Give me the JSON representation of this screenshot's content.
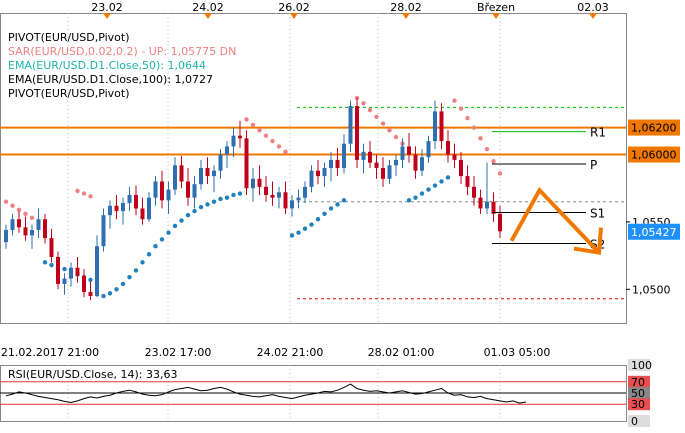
{
  "chart_data": [
    {
      "type": "candlestick",
      "symbol": "EUR/USD",
      "top_date_labels": [
        "23.02",
        "24.02",
        "26.02",
        "28.02",
        "Březen",
        "02.03"
      ],
      "bottom_time_labels": [
        "21.02.2017 21:00",
        "23.02 17:00",
        "24.02 21:00",
        "28.02 01:00",
        "01.03 05:00"
      ],
      "y_ticks": [
        "1,0550",
        "1,0500"
      ],
      "ylim": [
        1.0475,
        1.0705
      ],
      "price_tags": [
        {
          "label": "1,06200",
          "value": 1.062,
          "color": "#f07800"
        },
        {
          "label": "1,06000",
          "value": 1.06,
          "color": "#f07800"
        },
        {
          "label": "1,05427",
          "value": 1.05427,
          "color": "#1e90ff"
        }
      ],
      "legend": [
        {
          "text": "PIVOT(EUR/USD,Pivot)",
          "color": "#000000"
        },
        {
          "text": "SAR(EUR/USD,0.02,0.2) -  UP: 1,05775   DN",
          "color": "#f08080"
        },
        {
          "text": "EMA(EUR/USD.D1.Close,50): 1,0644",
          "color": "#20b2aa"
        },
        {
          "text": "EMA(EUR/USD.D1.Close,100): 1,0727",
          "color": "#000000"
        },
        {
          "text": "PIVOT(EUR/USD,Pivot)",
          "color": "#000000"
        }
      ],
      "levels": [
        {
          "name": "R1",
          "value": 1.0617
        },
        {
          "name": "P",
          "value": 1.0593
        },
        {
          "name": "S1",
          "value": 1.0557
        },
        {
          "name": "S2",
          "value": 1.0534
        }
      ],
      "horizontal_lines": [
        {
          "value": 1.062,
          "color": "#f07800",
          "style": "solid"
        },
        {
          "value": 1.06,
          "color": "#f07800",
          "style": "solid"
        },
        {
          "value": 1.0635,
          "color": "#00bb00",
          "style": "dashed"
        },
        {
          "value": 1.0565,
          "color": "#888888",
          "style": "dashed"
        },
        {
          "value": 1.0493,
          "color": "#dd0000",
          "style": "dashed"
        }
      ],
      "candles": [
        [
          1.0535,
          1.0548,
          1.053,
          1.0544
        ],
        [
          1.0544,
          1.0556,
          1.054,
          1.0552
        ],
        [
          1.0552,
          1.0558,
          1.0542,
          1.0546
        ],
        [
          1.0546,
          1.0554,
          1.0536,
          1.054
        ],
        [
          1.054,
          1.0548,
          1.053,
          1.0544
        ],
        [
          1.0544,
          1.056,
          1.0538,
          1.0552
        ],
        [
          1.0552,
          1.0556,
          1.0534,
          1.0538
        ],
        [
          1.0538,
          1.0545,
          1.052,
          1.0524
        ],
        [
          1.0524,
          1.0528,
          1.05,
          1.0504
        ],
        [
          1.0504,
          1.0512,
          1.0496,
          1.0508
        ],
        [
          1.0508,
          1.052,
          1.0502,
          1.0516
        ],
        [
          1.0516,
          1.0524,
          1.0505,
          1.051
        ],
        [
          1.051,
          1.0515,
          1.0494,
          1.0498
        ],
        [
          1.0498,
          1.0506,
          1.0492,
          1.0495
        ],
        [
          1.0495,
          1.054,
          1.0494,
          1.0532
        ],
        [
          1.0532,
          1.056,
          1.0528,
          1.0555
        ],
        [
          1.0555,
          1.0566,
          1.0545,
          1.0562
        ],
        [
          1.0562,
          1.057,
          1.0552,
          1.0558
        ],
        [
          1.0558,
          1.0568,
          1.0548,
          1.0564
        ],
        [
          1.0564,
          1.0576,
          1.0558,
          1.057
        ],
        [
          1.057,
          1.0577,
          1.0555,
          1.056
        ],
        [
          1.056,
          1.0568,
          1.0548,
          1.0552
        ],
        [
          1.0552,
          1.0572,
          1.055,
          1.0568
        ],
        [
          1.0568,
          1.0584,
          1.0562,
          1.058
        ],
        [
          1.058,
          1.0588,
          1.056,
          1.0566
        ],
        [
          1.0566,
          1.058,
          1.0556,
          1.0574
        ],
        [
          1.0574,
          1.0598,
          1.057,
          1.0592
        ],
        [
          1.0592,
          1.0599,
          1.0575,
          1.058
        ],
        [
          1.058,
          1.059,
          1.0562,
          1.0568
        ],
        [
          1.0568,
          1.0584,
          1.056,
          1.0578
        ],
        [
          1.0578,
          1.0596,
          1.0574,
          1.059
        ],
        [
          1.059,
          1.0598,
          1.0578,
          1.0584
        ],
        [
          1.0584,
          1.0592,
          1.0572,
          1.0588
        ],
        [
          1.0588,
          1.0604,
          1.0582,
          1.06
        ],
        [
          1.06,
          1.061,
          1.059,
          1.0606
        ],
        [
          1.0606,
          1.062,
          1.0598,
          1.0614
        ],
        [
          1.0614,
          1.0625,
          1.0605,
          1.0612
        ],
        [
          1.0612,
          1.0618,
          1.057,
          1.0575
        ],
        [
          1.0575,
          1.059,
          1.0565,
          1.0582
        ],
        [
          1.0582,
          1.0592,
          1.057,
          1.0576
        ],
        [
          1.0576,
          1.0584,
          1.0565,
          1.057
        ],
        [
          1.057,
          1.058,
          1.0562,
          1.0568
        ],
        [
          1.0568,
          1.0576,
          1.056,
          1.0572
        ],
        [
          1.0572,
          1.058,
          1.0556,
          1.056
        ],
        [
          1.056,
          1.057,
          1.0554,
          1.0566
        ],
        [
          1.0566,
          1.0574,
          1.056,
          1.0568
        ],
        [
          1.0568,
          1.058,
          1.0564,
          1.0576
        ],
        [
          1.0576,
          1.0592,
          1.0572,
          1.0588
        ],
        [
          1.0588,
          1.0596,
          1.0578,
          1.0584
        ],
        [
          1.0584,
          1.0594,
          1.0576,
          1.059
        ],
        [
          1.059,
          1.0602,
          1.058,
          1.0596
        ],
        [
          1.0596,
          1.0605,
          1.0584,
          1.059
        ],
        [
          1.059,
          1.0615,
          1.0586,
          1.0608
        ],
        [
          1.0608,
          1.064,
          1.0602,
          1.0636
        ],
        [
          1.0636,
          1.0642,
          1.059,
          1.0596
        ],
        [
          1.0596,
          1.0608,
          1.0586,
          1.0602
        ],
        [
          1.0602,
          1.061,
          1.059,
          1.0594
        ],
        [
          1.0594,
          1.06,
          1.0582,
          1.059
        ],
        [
          1.059,
          1.0598,
          1.0576,
          1.0582
        ],
        [
          1.0582,
          1.0596,
          1.0578,
          1.0592
        ],
        [
          1.0592,
          1.06,
          1.0584,
          1.0596
        ],
        [
          1.0596,
          1.0612,
          1.059,
          1.0606
        ],
        [
          1.0606,
          1.0616,
          1.0594,
          1.06
        ],
        [
          1.06,
          1.0606,
          1.0582,
          1.0588
        ],
        [
          1.0588,
          1.0604,
          1.0584,
          1.0598
        ],
        [
          1.0598,
          1.0614,
          1.0594,
          1.061
        ],
        [
          1.061,
          1.064,
          1.0604,
          1.0632
        ],
        [
          1.0632,
          1.0638,
          1.0604,
          1.061
        ],
        [
          1.061,
          1.0618,
          1.0594,
          1.06
        ],
        [
          1.06,
          1.0608,
          1.059,
          1.0596
        ],
        [
          1.0596,
          1.0602,
          1.0578,
          1.0584
        ],
        [
          1.0584,
          1.0592,
          1.057,
          1.0576
        ],
        [
          1.0576,
          1.0584,
          1.0562,
          1.0568
        ],
        [
          1.0568,
          1.0574,
          1.0556,
          1.056
        ],
        [
          1.056,
          1.0594,
          1.0556,
          1.0565
        ],
        [
          1.0565,
          1.0572,
          1.055,
          1.0556
        ],
        [
          1.0556,
          1.0562,
          1.0538,
          1.0543
        ]
      ],
      "sar_up": [
        [
          6,
          1.052
        ],
        [
          7,
          1.0518
        ],
        [
          8,
          1.0516
        ],
        [
          9,
          1.0515
        ],
        [
          10,
          1.0513
        ],
        [
          11,
          1.0511
        ],
        [
          12,
          1.0509
        ],
        [
          13,
          1.0507
        ],
        [
          14,
          1.0505
        ],
        [
          15,
          1.0495
        ],
        [
          16,
          1.0497
        ],
        [
          17,
          1.05
        ],
        [
          18,
          1.0504
        ],
        [
          19,
          1.0509
        ],
        [
          20,
          1.0514
        ],
        [
          21,
          1.052
        ],
        [
          22,
          1.0526
        ],
        [
          23,
          1.0532
        ],
        [
          24,
          1.0537
        ],
        [
          25,
          1.0542
        ],
        [
          26,
          1.0547
        ],
        [
          27,
          1.0551
        ],
        [
          28,
          1.0555
        ],
        [
          29,
          1.0558
        ],
        [
          30,
          1.0561
        ],
        [
          31,
          1.0563
        ],
        [
          32,
          1.0565
        ],
        [
          33,
          1.0567
        ],
        [
          34,
          1.0568
        ],
        [
          35,
          1.057
        ],
        [
          36,
          1.0571
        ],
        [
          44,
          1.054
        ],
        [
          45,
          1.0542
        ],
        [
          46,
          1.0545
        ],
        [
          47,
          1.0548
        ],
        [
          48,
          1.0552
        ],
        [
          49,
          1.0556
        ],
        [
          50,
          1.056
        ],
        [
          51,
          1.0563
        ],
        [
          52,
          1.0566
        ],
        [
          62,
          1.0566
        ],
        [
          63,
          1.0568
        ],
        [
          64,
          1.0571
        ],
        [
          65,
          1.0574
        ],
        [
          66,
          1.0577
        ],
        [
          67,
          1.058
        ],
        [
          68,
          1.0583
        ]
      ],
      "sar_dn": [
        [
          0,
          1.0565
        ],
        [
          1,
          1.0562
        ],
        [
          2,
          1.0559
        ],
        [
          3,
          1.0556
        ],
        [
          4,
          1.0553
        ],
        [
          5,
          1.055
        ],
        [
          11,
          1.0573
        ],
        [
          12,
          1.0571
        ],
        [
          13,
          1.0569
        ],
        [
          37,
          1.0626
        ],
        [
          38,
          1.0622
        ],
        [
          39,
          1.0618
        ],
        [
          40,
          1.0614
        ],
        [
          41,
          1.061
        ],
        [
          42,
          1.0606
        ],
        [
          43,
          1.0602
        ],
        [
          54,
          1.0642
        ],
        [
          55,
          1.0638
        ],
        [
          56,
          1.0633
        ],
        [
          57,
          1.0628
        ],
        [
          58,
          1.0623
        ],
        [
          59,
          1.0618
        ],
        [
          60,
          1.0613
        ],
        [
          61,
          1.0608
        ],
        [
          69,
          1.064
        ],
        [
          70,
          1.0634
        ],
        [
          71,
          1.0627
        ],
        [
          72,
          1.062
        ],
        [
          73,
          1.0612
        ],
        [
          74,
          1.0604
        ],
        [
          75,
          1.0595
        ],
        [
          76,
          1.0586
        ]
      ],
      "arrow": {
        "from": [
          1.0536,
          77
        ],
        "mid": [
          1.0555,
          79
        ],
        "to": [
          1.0505,
          82
        ]
      }
    },
    {
      "type": "line",
      "title": "RSI(EUR/USD.Close, 14): 33,63",
      "y_ticks": [
        "100",
        "70",
        "50",
        "30",
        "0"
      ],
      "ylim": [
        0,
        100
      ],
      "levels": [
        70,
        50,
        30
      ],
      "values": [
        45,
        48,
        52,
        50,
        47,
        44,
        42,
        40,
        38,
        35,
        33,
        36,
        40,
        43,
        41,
        44,
        46,
        50,
        53,
        55,
        52,
        48,
        46,
        45,
        47,
        52,
        56,
        58,
        60,
        57,
        54,
        55,
        58,
        60,
        57,
        52,
        48,
        46,
        44,
        43,
        45,
        47,
        44,
        42,
        40,
        43,
        46,
        48,
        50,
        53,
        52,
        55,
        60,
        66,
        58,
        55,
        53,
        54,
        52,
        50,
        52,
        54,
        51,
        48,
        49,
        52,
        55,
        58,
        50,
        46,
        47,
        43,
        42,
        44,
        40,
        38,
        36,
        34,
        36,
        32,
        34
      ]
    }
  ]
}
